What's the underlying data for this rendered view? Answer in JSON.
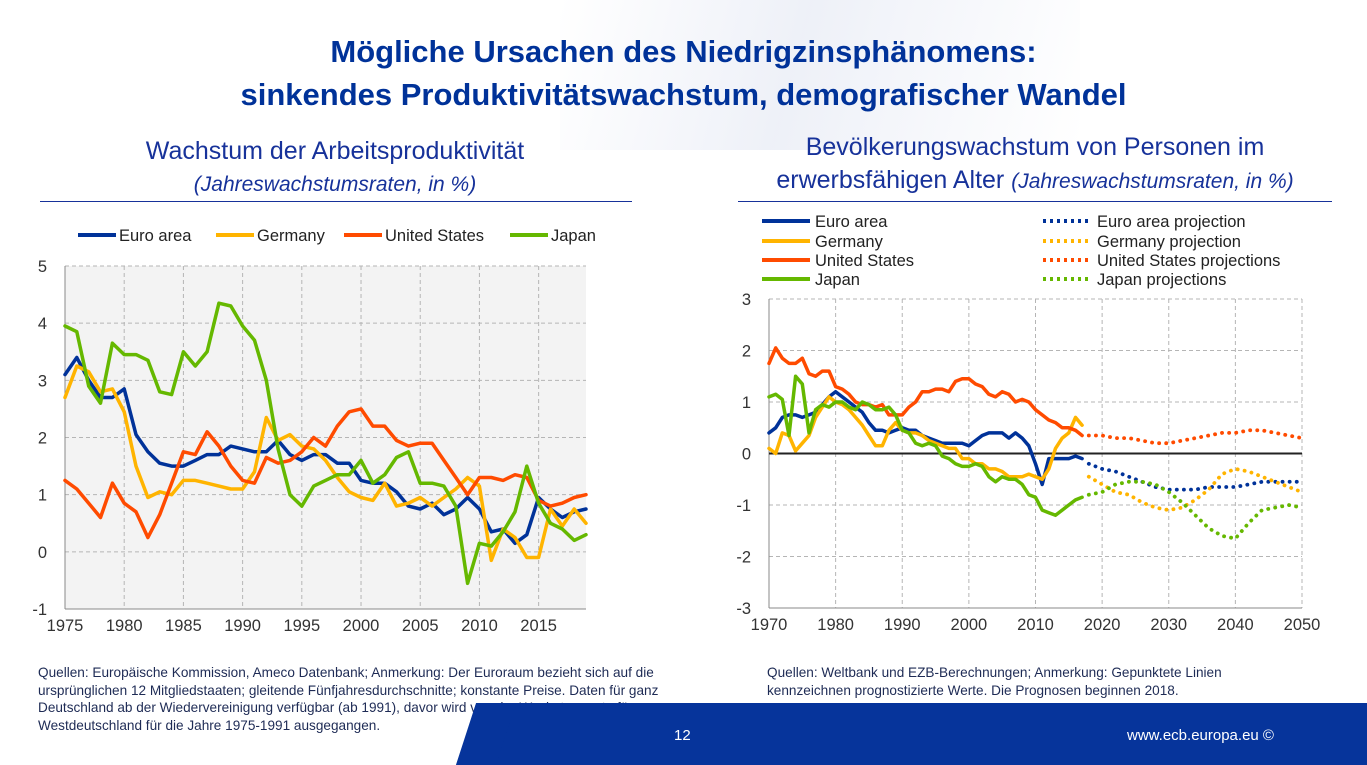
{
  "slide": {
    "title_line1": "Mögliche Ursachen des Niedrigzinsphänomens:",
    "title_line2": "sinkendes Produktivitätswachstum, demografischer Wandel",
    "page_number": "12",
    "website": "www.ecb.europa.eu ©"
  },
  "left": {
    "heading": "Wachstum der Arbeitsproduktivität",
    "unit": "(Jahreswachstumsraten, in %)",
    "note": "Quellen: Europäische Kommission, Ameco Datenbank; Anmerkung: Der Euroraum bezieht sich auf die ursprünglichen 12 Mitgliedstaaten; gleitende Fünfjahresdurchschnitte; konstante Preise. Daten für  ganz Deutschland ab der Wiedervereinigung verfügbar (ab 1991), davor wird von der Wachstumsrate für Westdeutschland für die Jahre 1975-1991 ausgegangen."
  },
  "right": {
    "heading_line1": "Bevölkerungswachstum von Personen im",
    "heading_line2": "erwerbsfähigen Alter",
    "unit": "(Jahreswachstumsraten, in %)",
    "note": "Quellen: Weltbank und EZB-Berechnungen; Anmerkung: Gepunktete Linien kennzeichnen prognostizierte Werte. Die Prognosen beginnen 2018."
  },
  "colors": {
    "euro": "#003299",
    "germany": "#ffb400",
    "us": "#ff4b00",
    "japan": "#65b800",
    "title": "#003299",
    "footer": "#06349b"
  },
  "chart_data": [
    {
      "type": "line",
      "ylim": [
        -1,
        5
      ],
      "xlim": [
        1975,
        2019
      ],
      "yticks": [
        "5",
        "4",
        "3",
        "2",
        "1",
        "0",
        "-1"
      ],
      "xticks": [
        "1975",
        "1980",
        "1985",
        "1990",
        "1995",
        "2000",
        "2005",
        "2010",
        "2015"
      ],
      "grid": true,
      "legend_position": "top",
      "x": [
        1975,
        1976,
        1977,
        1978,
        1979,
        1980,
        1981,
        1982,
        1983,
        1984,
        1985,
        1986,
        1987,
        1988,
        1989,
        1990,
        1991,
        1992,
        1993,
        1994,
        1995,
        1996,
        1997,
        1998,
        1999,
        2000,
        2001,
        2002,
        2003,
        2004,
        2005,
        2006,
        2007,
        2008,
        2009,
        2010,
        2011,
        2012,
        2013,
        2014,
        2015,
        2016,
        2017,
        2018,
        2019
      ],
      "series": [
        {
          "name": "Euro area",
          "key": "euro",
          "values": [
            3.1,
            3.4,
            3.0,
            2.7,
            2.7,
            2.85,
            2.05,
            1.75,
            1.55,
            1.5,
            1.5,
            1.6,
            1.7,
            1.7,
            1.85,
            1.8,
            1.75,
            1.75,
            1.95,
            1.7,
            1.6,
            1.7,
            1.7,
            1.55,
            1.55,
            1.25,
            1.2,
            1.2,
            1.05,
            0.8,
            0.75,
            0.85,
            0.65,
            0.75,
            0.95,
            0.75,
            0.35,
            0.4,
            0.15,
            0.3,
            0.95,
            0.75,
            0.6,
            0.7,
            0.75
          ]
        },
        {
          "name": "Germany",
          "key": "germany",
          "values": [
            2.7,
            3.25,
            3.15,
            2.8,
            2.85,
            2.45,
            1.5,
            0.95,
            1.05,
            1.0,
            1.25,
            1.25,
            1.2,
            1.15,
            1.1,
            1.1,
            1.4,
            2.35,
            1.95,
            2.05,
            1.85,
            1.8,
            1.6,
            1.3,
            1.05,
            0.95,
            0.9,
            1.2,
            0.8,
            0.85,
            0.95,
            0.8,
            0.95,
            1.1,
            1.3,
            1.15,
            -0.15,
            0.4,
            0.25,
            -0.1,
            -0.1,
            0.75,
            0.45,
            0.75,
            0.5
          ]
        },
        {
          "name": "United States",
          "key": "us",
          "values": [
            1.25,
            1.1,
            0.85,
            0.6,
            1.2,
            0.85,
            0.7,
            0.25,
            0.65,
            1.2,
            1.75,
            1.7,
            2.1,
            1.85,
            1.5,
            1.25,
            1.2,
            1.65,
            1.55,
            1.6,
            1.75,
            2.0,
            1.85,
            2.2,
            2.45,
            2.5,
            2.2,
            2.2,
            1.95,
            1.85,
            1.9,
            1.9,
            1.6,
            1.3,
            1.0,
            1.3,
            1.3,
            1.25,
            1.35,
            1.3,
            0.9,
            0.8,
            0.85,
            0.95,
            1.0
          ]
        },
        {
          "name": "Japan",
          "key": "japan",
          "values": [
            3.95,
            3.85,
            2.9,
            2.6,
            3.65,
            3.45,
            3.45,
            3.35,
            2.8,
            2.75,
            3.5,
            3.25,
            3.5,
            4.35,
            4.3,
            3.95,
            3.7,
            3.0,
            1.8,
            1.0,
            0.8,
            1.15,
            1.25,
            1.35,
            1.35,
            1.6,
            1.2,
            1.35,
            1.65,
            1.75,
            1.2,
            1.2,
            1.15,
            0.8,
            -0.55,
            0.15,
            0.1,
            0.35,
            0.7,
            1.5,
            0.85,
            0.5,
            0.4,
            0.2,
            0.3
          ]
        }
      ]
    },
    {
      "type": "line",
      "ylim": [
        -3,
        3
      ],
      "xlim": [
        1970,
        2050
      ],
      "yticks": [
        "3",
        "2",
        "1",
        "0",
        "-1",
        "-2",
        "-3"
      ],
      "xticks": [
        "1970",
        "1980",
        "1990",
        "2000",
        "2010",
        "2020",
        "2030",
        "2040",
        "2050"
      ],
      "grid": true,
      "legend_position": "top",
      "series": [
        {
          "name": "Euro area",
          "key": "euro",
          "style": "solid",
          "x": [
            1970,
            1971,
            1972,
            1973,
            1974,
            1975,
            1976,
            1977,
            1978,
            1979,
            1980,
            1981,
            1982,
            1983,
            1984,
            1985,
            1986,
            1987,
            1988,
            1989,
            1990,
            1991,
            1992,
            1993,
            1994,
            1995,
            1996,
            1997,
            1998,
            1999,
            2000,
            2001,
            2002,
            2003,
            2004,
            2005,
            2006,
            2007,
            2008,
            2009,
            2010,
            2011,
            2012,
            2013,
            2014,
            2015,
            2016,
            2017
          ],
          "values": [
            0.4,
            0.5,
            0.7,
            0.75,
            0.75,
            0.7,
            0.75,
            0.8,
            0.95,
            1.1,
            1.2,
            1.1,
            1.0,
            0.9,
            0.8,
            0.6,
            0.45,
            0.45,
            0.4,
            0.45,
            0.5,
            0.45,
            0.45,
            0.35,
            0.3,
            0.25,
            0.2,
            0.2,
            0.2,
            0.2,
            0.15,
            0.25,
            0.35,
            0.4,
            0.4,
            0.4,
            0.3,
            0.4,
            0.3,
            0.15,
            -0.2,
            -0.6,
            -0.1,
            -0.1,
            -0.1,
            -0.1,
            -0.05,
            -0.1
          ]
        },
        {
          "name": "Germany",
          "key": "germany",
          "style": "solid",
          "x": [
            1970,
            1971,
            1972,
            1973,
            1974,
            1975,
            1976,
            1977,
            1978,
            1979,
            1980,
            1981,
            1982,
            1983,
            1984,
            1985,
            1986,
            1987,
            1988,
            1989,
            1990,
            1991,
            1992,
            1993,
            1994,
            1995,
            1996,
            1997,
            1998,
            1999,
            2000,
            2001,
            2002,
            2003,
            2004,
            2005,
            2006,
            2007,
            2008,
            2009,
            2010,
            2011,
            2012,
            2013,
            2014,
            2015,
            2016,
            2017
          ],
          "values": [
            0.1,
            0.0,
            0.4,
            0.35,
            0.05,
            0.2,
            0.35,
            0.7,
            0.9,
            1.1,
            1.0,
            0.95,
            0.85,
            0.7,
            0.55,
            0.35,
            0.15,
            0.15,
            0.45,
            0.6,
            0.45,
            0.4,
            0.4,
            0.35,
            0.25,
            0.2,
            0.15,
            0.1,
            0.1,
            -0.1,
            -0.1,
            -0.2,
            -0.2,
            -0.3,
            -0.3,
            -0.35,
            -0.45,
            -0.45,
            -0.45,
            -0.4,
            -0.45,
            -0.5,
            -0.3,
            0.1,
            0.3,
            0.4,
            0.7,
            0.55
          ]
        },
        {
          "name": "United States",
          "key": "us",
          "style": "solid",
          "x": [
            1970,
            1971,
            1972,
            1973,
            1974,
            1975,
            1976,
            1977,
            1978,
            1979,
            1980,
            1981,
            1982,
            1983,
            1984,
            1985,
            1986,
            1987,
            1988,
            1989,
            1990,
            1991,
            1992,
            1993,
            1994,
            1995,
            1996,
            1997,
            1998,
            1999,
            2000,
            2001,
            2002,
            2003,
            2004,
            2005,
            2006,
            2007,
            2008,
            2009,
            2010,
            2011,
            2012,
            2013,
            2014,
            2015,
            2016,
            2017
          ],
          "values": [
            1.75,
            2.05,
            1.85,
            1.75,
            1.75,
            1.85,
            1.55,
            1.5,
            1.6,
            1.6,
            1.3,
            1.25,
            1.15,
            1.0,
            0.95,
            0.95,
            0.9,
            0.95,
            0.75,
            0.75,
            0.75,
            0.9,
            1.0,
            1.2,
            1.2,
            1.25,
            1.25,
            1.2,
            1.4,
            1.45,
            1.45,
            1.35,
            1.3,
            1.15,
            1.1,
            1.2,
            1.15,
            1.0,
            1.05,
            1.0,
            0.85,
            0.75,
            0.65,
            0.6,
            0.5,
            0.5,
            0.45,
            0.35
          ]
        },
        {
          "name": "Japan",
          "key": "japan",
          "style": "solid",
          "x": [
            1970,
            1971,
            1972,
            1973,
            1974,
            1975,
            1976,
            1977,
            1978,
            1979,
            1980,
            1981,
            1982,
            1983,
            1984,
            1985,
            1986,
            1987,
            1988,
            1989,
            1990,
            1991,
            1992,
            1993,
            1994,
            1995,
            1996,
            1997,
            1998,
            1999,
            2000,
            2001,
            2002,
            2003,
            2004,
            2005,
            2006,
            2007,
            2008,
            2009,
            2010,
            2011,
            2012,
            2013,
            2014,
            2015,
            2016,
            2017
          ],
          "values": [
            1.1,
            1.15,
            1.05,
            0.35,
            1.5,
            1.35,
            0.4,
            0.85,
            0.95,
            0.9,
            1.0,
            1.0,
            0.9,
            0.85,
            1.0,
            0.95,
            0.85,
            0.85,
            0.9,
            0.75,
            0.45,
            0.4,
            0.2,
            0.15,
            0.2,
            0.15,
            -0.05,
            -0.1,
            -0.2,
            -0.25,
            -0.25,
            -0.2,
            -0.25,
            -0.45,
            -0.55,
            -0.45,
            -0.5,
            -0.5,
            -0.6,
            -0.8,
            -0.85,
            -1.1,
            -1.15,
            -1.2,
            -1.1,
            -1.0,
            -0.9,
            -0.85
          ]
        },
        {
          "name": "Euro area projection",
          "key": "euro",
          "style": "dotted",
          "x": [
            2018,
            2020,
            2022,
            2024,
            2026,
            2028,
            2030,
            2032,
            2034,
            2036,
            2038,
            2040,
            2042,
            2044,
            2046,
            2048,
            2050
          ],
          "values": [
            -0.2,
            -0.3,
            -0.35,
            -0.45,
            -0.55,
            -0.65,
            -0.7,
            -0.7,
            -0.7,
            -0.65,
            -0.65,
            -0.65,
            -0.6,
            -0.55,
            -0.55,
            -0.55,
            -0.55
          ]
        },
        {
          "name": "Germany projection",
          "key": "germany",
          "style": "dotted",
          "x": [
            2018,
            2020,
            2022,
            2024,
            2026,
            2028,
            2030,
            2032,
            2034,
            2036,
            2038,
            2040,
            2042,
            2044,
            2046,
            2048,
            2050
          ],
          "values": [
            -0.45,
            -0.6,
            -0.75,
            -0.8,
            -0.95,
            -1.05,
            -1.1,
            -1.05,
            -0.9,
            -0.7,
            -0.4,
            -0.3,
            -0.35,
            -0.45,
            -0.55,
            -0.65,
            -0.75
          ]
        },
        {
          "name": "United States projections",
          "key": "us",
          "style": "dotted",
          "x": [
            2018,
            2020,
            2022,
            2024,
            2026,
            2028,
            2030,
            2032,
            2034,
            2036,
            2038,
            2040,
            2042,
            2044,
            2046,
            2048,
            2050
          ],
          "values": [
            0.35,
            0.35,
            0.3,
            0.3,
            0.25,
            0.2,
            0.2,
            0.25,
            0.3,
            0.35,
            0.4,
            0.4,
            0.45,
            0.45,
            0.4,
            0.35,
            0.3
          ]
        },
        {
          "name": "Japan projections",
          "key": "japan",
          "style": "dotted",
          "x": [
            2018,
            2020,
            2022,
            2024,
            2026,
            2028,
            2030,
            2032,
            2034,
            2036,
            2038,
            2040,
            2042,
            2044,
            2046,
            2048,
            2050
          ],
          "values": [
            -0.8,
            -0.75,
            -0.6,
            -0.55,
            -0.55,
            -0.6,
            -0.75,
            -0.95,
            -1.2,
            -1.45,
            -1.6,
            -1.65,
            -1.35,
            -1.1,
            -1.05,
            -1.0,
            -1.05
          ]
        }
      ]
    }
  ]
}
